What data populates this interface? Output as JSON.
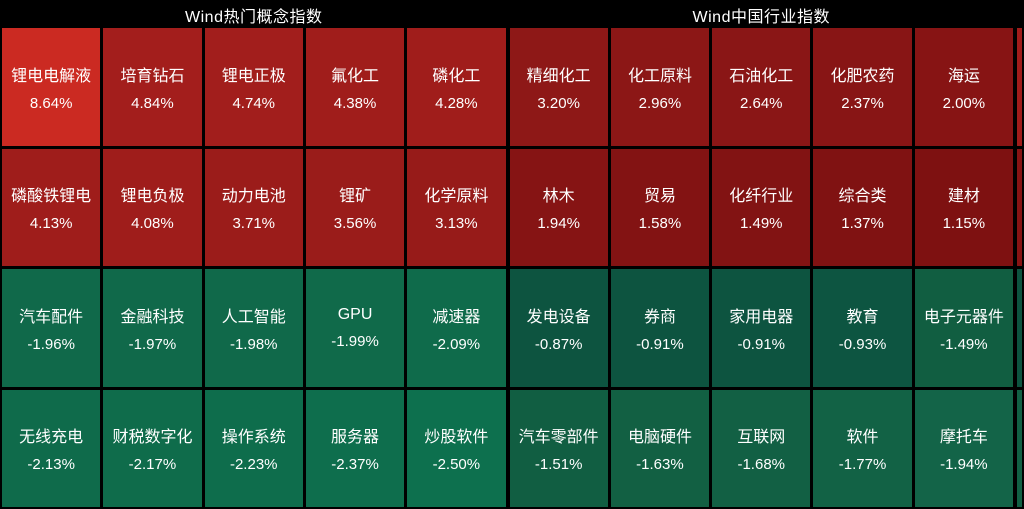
{
  "colors": {
    "background": "#000000",
    "text": "#ffffff"
  },
  "chart_data": [
    {
      "type": "heatmap",
      "title": "Wind热门概念指数",
      "rows": 4,
      "cols": 5,
      "cells": [
        {
          "label": "锂电电解液",
          "value": 8.64,
          "display": "8.64%",
          "color": "#cb2a22"
        },
        {
          "label": "培育钻石",
          "value": 4.84,
          "display": "4.84%",
          "color": "#a31e1c"
        },
        {
          "label": "锂电正极",
          "value": 4.74,
          "display": "4.74%",
          "color": "#a21e1c"
        },
        {
          "label": "氟化工",
          "value": 4.38,
          "display": "4.38%",
          "color": "#a01d1b"
        },
        {
          "label": "磷化工",
          "value": 4.28,
          "display": "4.28%",
          "color": "#a01d1b"
        },
        {
          "label": "磷酸铁锂电",
          "value": 4.13,
          "display": "4.13%",
          "color": "#9f1d1b"
        },
        {
          "label": "锂电负极",
          "value": 4.08,
          "display": "4.08%",
          "color": "#9f1d1b"
        },
        {
          "label": "动力电池",
          "value": 3.71,
          "display": "3.71%",
          "color": "#9b1c1a"
        },
        {
          "label": "锂矿",
          "value": 3.56,
          "display": "3.56%",
          "color": "#9a1c1a"
        },
        {
          "label": "化学原料",
          "value": 3.13,
          "display": "3.13%",
          "color": "#971b19"
        },
        {
          "label": "汽车配件",
          "value": -1.96,
          "display": "-1.96%",
          "color": "#10694a"
        },
        {
          "label": "金融科技",
          "value": -1.97,
          "display": "-1.97%",
          "color": "#10694a"
        },
        {
          "label": "人工智能",
          "value": -1.98,
          "display": "-1.98%",
          "color": "#10694a"
        },
        {
          "label": "GPU",
          "value": -1.99,
          "display": "-1.99%",
          "color": "#106a4a"
        },
        {
          "label": "减速器",
          "value": -2.09,
          "display": "-2.09%",
          "color": "#0f6b4b"
        },
        {
          "label": "无线充电",
          "value": -2.13,
          "display": "-2.13%",
          "color": "#0f6b4b"
        },
        {
          "label": "财税数字化",
          "value": -2.17,
          "display": "-2.17%",
          "color": "#0f6c4b"
        },
        {
          "label": "操作系统",
          "value": -2.23,
          "display": "-2.23%",
          "color": "#0e6d4c"
        },
        {
          "label": "服务器",
          "value": -2.37,
          "display": "-2.37%",
          "color": "#0e6e4d"
        },
        {
          "label": "炒股软件",
          "value": -2.5,
          "display": "-2.50%",
          "color": "#0d704e"
        }
      ]
    },
    {
      "type": "heatmap",
      "title": "Wind中国行业指数",
      "rows": 4,
      "cols": 5,
      "cells": [
        {
          "label": "精细化工",
          "value": 3.2,
          "display": "3.20%",
          "color": "#8e1817"
        },
        {
          "label": "化工原料",
          "value": 2.96,
          "display": "2.96%",
          "color": "#8c1716"
        },
        {
          "label": "石油化工",
          "value": 2.64,
          "display": "2.64%",
          "color": "#8a1616"
        },
        {
          "label": "化肥农药",
          "value": 2.37,
          "display": "2.37%",
          "color": "#881515"
        },
        {
          "label": "海运",
          "value": 2.0,
          "display": "2.00%",
          "color": "#871414"
        },
        {
          "label": "林木",
          "value": 1.94,
          "display": "1.94%",
          "color": "#861414"
        },
        {
          "label": "贸易",
          "value": 1.58,
          "display": "1.58%",
          "color": "#831313"
        },
        {
          "label": "化纤行业",
          "value": 1.49,
          "display": "1.49%",
          "color": "#821313"
        },
        {
          "label": "综合类",
          "value": 1.37,
          "display": "1.37%",
          "color": "#801212"
        },
        {
          "label": "建材",
          "value": 1.15,
          "display": "1.15%",
          "color": "#7e1111"
        },
        {
          "label": "发电设备",
          "value": -0.87,
          "display": "-0.87%",
          "color": "#0d5440"
        },
        {
          "label": "券商",
          "value": -0.91,
          "display": "-0.91%",
          "color": "#0d5440"
        },
        {
          "label": "家用电器",
          "value": -0.91,
          "display": "-0.91%",
          "color": "#0d5440"
        },
        {
          "label": "教育",
          "value": -0.93,
          "display": "-0.93%",
          "color": "#0d5541"
        },
        {
          "label": "电子元器件",
          "value": -1.49,
          "display": "-1.49%",
          "color": "#115e41"
        },
        {
          "label": "汽车零部件",
          "value": -1.51,
          "display": "-1.51%",
          "color": "#115e42"
        },
        {
          "label": "电脑硬件",
          "value": -1.63,
          "display": "-1.63%",
          "color": "#126043"
        },
        {
          "label": "互联网",
          "value": -1.68,
          "display": "-1.68%",
          "color": "#126044"
        },
        {
          "label": "软件",
          "value": -1.77,
          "display": "-1.77%",
          "color": "#126245"
        },
        {
          "label": "摩托车",
          "value": -1.94,
          "display": "-1.94%",
          "color": "#136448"
        }
      ]
    }
  ],
  "edge_sliver": {
    "colors": [
      "#a01d1b",
      "#871414",
      "#0d5440",
      "#126044"
    ]
  }
}
